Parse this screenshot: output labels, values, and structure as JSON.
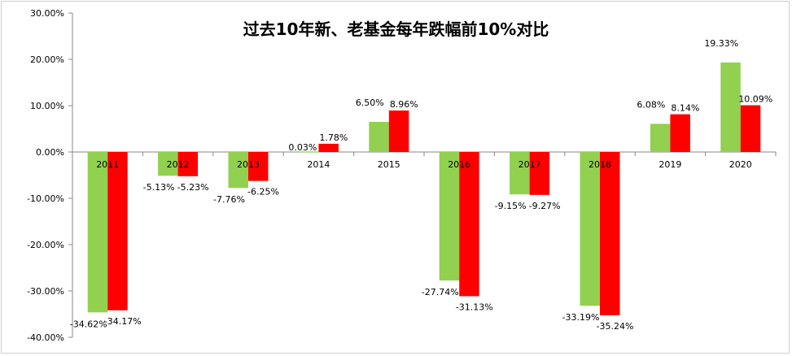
{
  "chart_data": {
    "type": "bar",
    "title": "过去10年新、老基金每年跌幅前10%对比",
    "categories": [
      "2011",
      "2012",
      "2013",
      "2014",
      "2015",
      "2016",
      "2017",
      "2018",
      "2019",
      "2020"
    ],
    "series": [
      {
        "color": "#92d050",
        "values": [
          -34.62,
          -5.13,
          -7.76,
          0.03,
          6.5,
          -27.74,
          -9.15,
          -33.19,
          6.08,
          19.33
        ],
        "labels": [
          "-34.62%",
          "-5.13%",
          "-7.76%",
          "0.03%",
          "6.50%",
          "-27.74%",
          "-9.15%",
          "-33.19%",
          "6.08%",
          "19.33%"
        ]
      },
      {
        "color": "#ff0000",
        "values": [
          -34.17,
          -5.23,
          -6.25,
          1.78,
          8.96,
          -31.13,
          -9.27,
          -35.24,
          8.14,
          10.09
        ],
        "labels": [
          "-34.17%",
          "-5.23%",
          "-6.25%",
          "1.78%",
          "8.96%",
          "-31.13%",
          "-9.27%",
          "-35.24%",
          "8.14%",
          "10.09%"
        ]
      }
    ],
    "ylim": [
      -40,
      30
    ],
    "yticks": [
      30,
      20,
      10,
      0,
      -10,
      -20,
      -30,
      -40
    ],
    "ytick_labels": [
      "30.00%",
      "20.00%",
      "10.00%",
      "0.00%",
      "-10.00%",
      "-20.00%",
      "-30.00%",
      "-40.00%"
    ],
    "xlabel": "",
    "ylabel": "",
    "grid": false,
    "legend": false
  }
}
